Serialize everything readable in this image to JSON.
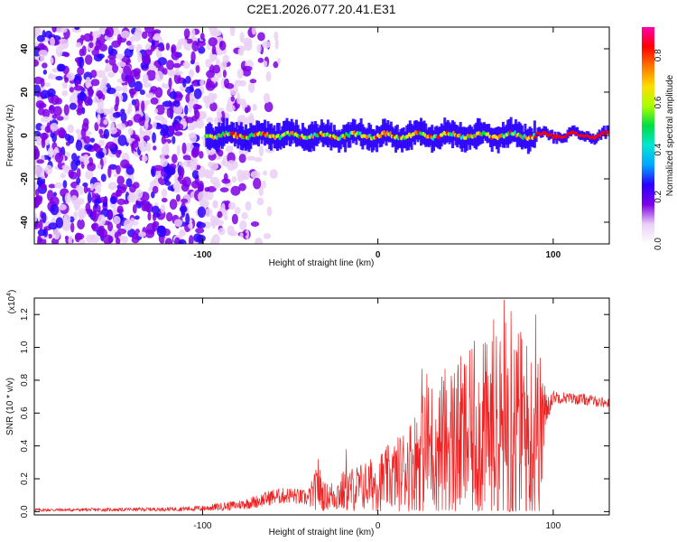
{
  "title": "C2E1.2026.077.20.41.E31",
  "chart_data": [
    {
      "type": "heatmap",
      "xlabel": "Height of straight line (km)",
      "ylabel": "Frequency (Hz)",
      "xlim": [
        -196,
        132
      ],
      "ylim": [
        -50,
        50
      ],
      "xticks": [
        -100,
        0,
        100
      ],
      "yticks": [
        -40,
        -20,
        0,
        20,
        40
      ],
      "colorbar": {
        "label": "Normalized spectral amplitude",
        "range": [
          0,
          0.92
        ],
        "ticks": [
          0.0,
          0.2,
          0.4,
          0.6,
          0.8
        ],
        "colormap": [
          "#ffffff",
          "#ead0f6",
          "#7e00e6",
          "#2a00ff",
          "#00a6ff",
          "#00e6d2",
          "#00dd44",
          "#aaff00",
          "#ffdd00",
          "#ff7700",
          "#ff0000",
          "#ff00aa"
        ]
      },
      "description_regions": {
        "noise_x_range_km": [
          -196,
          -60
        ],
        "signal_band_center_hz": 0,
        "signal_start_km": -98
      }
    },
    {
      "type": "line",
      "xlabel": "Height of straight line (km)",
      "ylabel": "SNR (10 * v/v)",
      "multiplier_label": "(x10",
      "multiplier_exp": "4",
      "xlim": [
        -196,
        132
      ],
      "ylim": [
        -0.02,
        1.3
      ],
      "xticks": [
        -100,
        0,
        100
      ],
      "yticks": [
        0.0,
        0.2,
        0.4,
        0.6,
        0.8,
        1.0,
        1.2
      ],
      "series": [
        {
          "name": "SNR",
          "color": "#ee2222",
          "envelope_x": [
            -196,
            -150,
            -120,
            -100,
            -90,
            -80,
            -70,
            -60,
            -50,
            -40,
            -34,
            -30,
            -25,
            -20,
            -10,
            -5,
            0,
            10,
            20,
            30,
            40,
            50,
            60,
            70,
            75,
            80,
            86,
            90,
            94,
            96,
            100,
            110,
            120,
            132
          ],
          "envelope_mean": [
            0.01,
            0.012,
            0.015,
            0.02,
            0.03,
            0.04,
            0.06,
            0.09,
            0.1,
            0.08,
            0.14,
            0.09,
            0.1,
            0.12,
            0.15,
            0.16,
            0.18,
            0.22,
            0.3,
            0.4,
            0.42,
            0.45,
            0.48,
            0.5,
            0.52,
            0.5,
            0.46,
            0.44,
            0.5,
            0.62,
            0.7,
            0.69,
            0.68,
            0.66
          ],
          "envelope_amp": [
            0.01,
            0.01,
            0.012,
            0.018,
            0.025,
            0.03,
            0.04,
            0.05,
            0.05,
            0.05,
            0.16,
            0.08,
            0.1,
            0.13,
            0.15,
            0.16,
            0.18,
            0.22,
            0.3,
            0.42,
            0.48,
            0.52,
            0.55,
            0.6,
            0.75,
            0.65,
            0.58,
            0.55,
            0.45,
            0.1,
            0.04,
            0.035,
            0.035,
            0.03
          ],
          "peaks": [
            {
              "x": -34,
              "y": 0.32
            },
            {
              "x": -18,
              "y": 0.38
            },
            {
              "x": 25,
              "y": 0.87
            },
            {
              "x": 28,
              "y": 0.84
            },
            {
              "x": 55,
              "y": 1.04
            },
            {
              "x": 60,
              "y": 1.02
            },
            {
              "x": 66,
              "y": 1.17
            },
            {
              "x": 72,
              "y": 1.29
            },
            {
              "x": 76,
              "y": 1.22
            },
            {
              "x": 82,
              "y": 1.05
            },
            {
              "x": 90,
              "y": 1.2
            },
            {
              "x": 94,
              "y": 0.78
            }
          ]
        }
      ]
    }
  ]
}
